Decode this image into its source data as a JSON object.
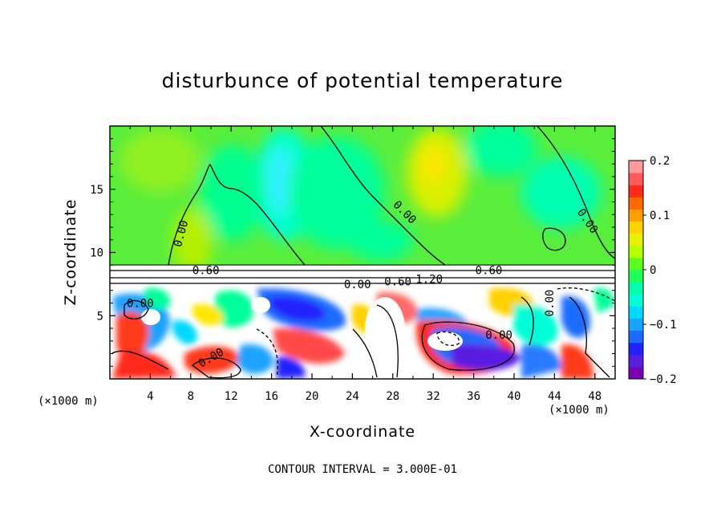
{
  "chart_data": {
    "type": "heatmap",
    "title": "disturbunce of potential temperature",
    "xlabel": "X-coordinate",
    "ylabel": "Z-coordinate",
    "x_unit_label": "(×1000 m)",
    "xlim": [
      0,
      50
    ],
    "ylim": [
      0,
      20
    ],
    "x_ticks": [
      4,
      8,
      12,
      16,
      20,
      24,
      28,
      32,
      36,
      40,
      44,
      48
    ],
    "y_ticks": [
      5,
      10,
      15
    ],
    "colorbar": {
      "range": [
        -0.2,
        0.2
      ],
      "tick_labels": [
        "0.2",
        "0.1",
        "0",
        "−0.1",
        "−0.2"
      ],
      "tick_values": [
        0.2,
        0.1,
        0,
        -0.1,
        -0.2
      ],
      "colors": [
        "#7a00b4",
        "#5a1ee0",
        "#2222ff",
        "#1e6cff",
        "#1aa2ff",
        "#00d8ff",
        "#00ffd8",
        "#00ffaa",
        "#1eff5a",
        "#5aff1e",
        "#b4ff00",
        "#e6f000",
        "#ffd200",
        "#ffa000",
        "#ff6a00",
        "#ff2a1a",
        "#ff5a5a",
        "#ff9a9a"
      ]
    },
    "contour_labels": [
      "0.00",
      "0.00",
      "0.00",
      "0.00",
      "0.00",
      "0.60",
      "0.60",
      "0.00",
      "0.60",
      "1.20",
      "0.00",
      "0.00"
    ],
    "footnote": "CONTOUR INTERVAL = 3.000E-01"
  }
}
